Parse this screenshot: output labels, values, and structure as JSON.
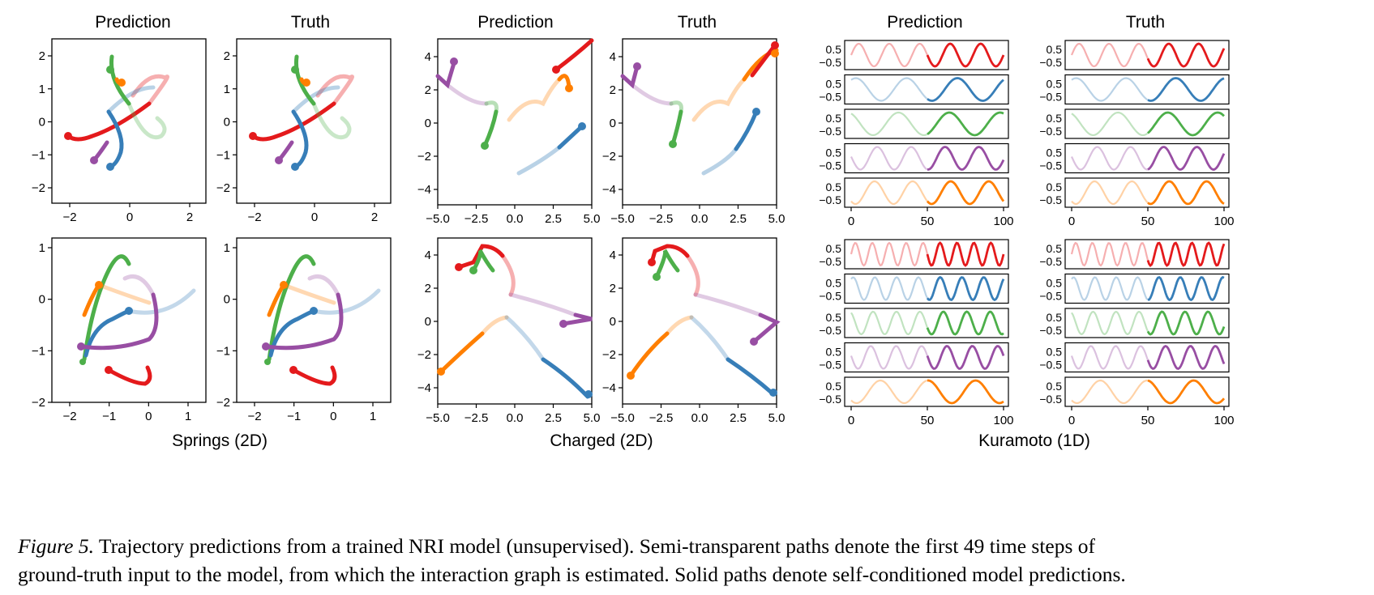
{
  "figure": {
    "groups": [
      {
        "key": "springs",
        "label": "Springs (2D)",
        "titles": [
          "Prediction",
          "Truth"
        ]
      },
      {
        "key": "charged",
        "label": "Charged (2D)",
        "titles": [
          "Prediction",
          "Truth"
        ]
      },
      {
        "key": "kuramoto",
        "label": "Kuramoto (1D)",
        "titles": [
          "Prediction",
          "Truth"
        ]
      }
    ],
    "axes": {
      "springs": {
        "top": {
          "xticks": [
            "−2",
            "0",
            "2"
          ],
          "yticks": [
            "2",
            "1",
            "0",
            "−1",
            "−2"
          ],
          "xlim": [
            -2.4,
            2.4
          ],
          "ylim": [
            -2.5,
            2.5
          ]
        },
        "bottom": {
          "xticks": [
            "−2",
            "−1",
            "0",
            "1"
          ],
          "yticks": [
            "1",
            "0",
            "−1",
            "−2"
          ],
          "xlim": [
            -2.4,
            1.5
          ],
          "ylim": [
            -2,
            1.2
          ]
        }
      },
      "charged": {
        "xticks": [
          "−5.0",
          "−2.5",
          "0.0",
          "2.5",
          "5.0"
        ],
        "yticks": [
          "4",
          "2",
          "0",
          "−2",
          "−4"
        ],
        "xlim": [
          -5,
          5
        ],
        "ylim": [
          -5,
          5
        ]
      },
      "kuramoto": {
        "xticks": [
          "0",
          "50",
          "100"
        ],
        "yticks": [
          "0.5",
          "−0.5"
        ],
        "xlim": [
          0,
          100
        ]
      }
    },
    "colors": {
      "blue": "#377eb8",
      "red": "#e41a1c",
      "green": "#4daf4a",
      "purple": "#984ea3",
      "orange": "#ff7f00"
    }
  },
  "caption": {
    "label": "Figure 5.",
    "line1": "Trajectory predictions from a trained NRI model (unsupervised).  Semi-transparent paths denote the first 49 time steps of",
    "line2": "ground-truth input to the model, from which the interaction graph is estimated. Solid paths denote self-conditioned model predictions."
  }
}
